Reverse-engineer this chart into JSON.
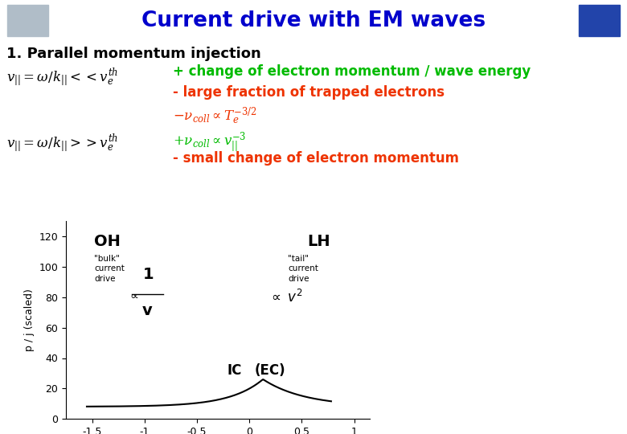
{
  "title": "Current drive with EM waves",
  "title_color": "#0000CC",
  "background_color": "#FFFFFF",
  "header_bg": "#C8D4E0",
  "subtitle": "1. Parallel momentum injection",
  "text_green1": "+ change of electron momentum / wave energy",
  "text_red1": "- large fraction of trapped electrons",
  "text_red3": "- small change of electron momentum",
  "plot_ylabel": "p / j (scaled)",
  "plot_yticks": [
    0,
    20,
    40,
    60,
    80,
    100,
    120
  ],
  "plot_xticks": [
    -1.5,
    -1.0,
    -0.5,
    0.0,
    0.5,
    1.0
  ],
  "plot_xlim": [
    -1.75,
    1.15
  ],
  "plot_ylim": [
    0,
    130
  ],
  "curve_color": "#000000",
  "green_color": "#00BB00",
  "red_color": "#EE3300"
}
